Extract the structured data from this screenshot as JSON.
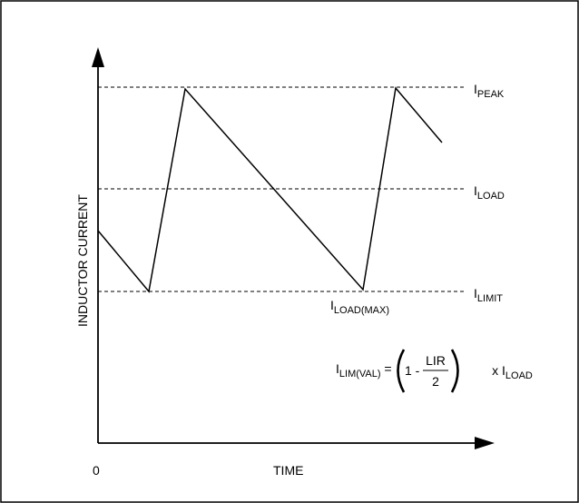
{
  "axes": {
    "y_label": "INDUCTOR CURRENT",
    "x_label": "TIME",
    "origin": "0"
  },
  "levels": [
    {
      "main": "I",
      "sub": "PEAK"
    },
    {
      "main": "I",
      "sub": "LOAD"
    },
    {
      "main": "I",
      "sub": "LIMIT"
    }
  ],
  "valley_label": {
    "main": "I",
    "sub": "LOAD(MAX)"
  },
  "formula": {
    "lhs_main": "I",
    "lhs_sub": "LIM(VAL)",
    "equals": " = ",
    "one_minus": "1 - ",
    "numerator": "LIR",
    "denominator": "2",
    "times": " x ",
    "rhs_main": "I",
    "rhs_sub": "LOAD"
  },
  "colors": {
    "line": "#000000",
    "frame": "#000000"
  }
}
